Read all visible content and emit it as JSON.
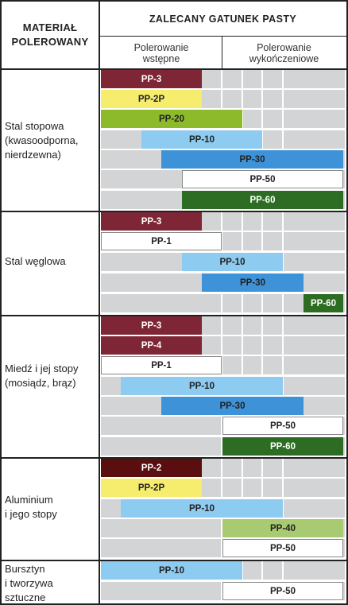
{
  "header": {
    "material_line1": "MATERIAŁ",
    "material_line2": "POLEROWANY",
    "paste_grade": "ZALECANY GATUNEK PASTY",
    "pre_polish_line1": "Polerowanie",
    "pre_polish_line2": "wstępne",
    "finish_polish_line1": "Polerowanie",
    "finish_polish_line2": "wykończeniowe"
  },
  "colors": {
    "grey": "#d3d4d5",
    "maroon": "#7f2636",
    "dark_maroon": "#5b0e10",
    "yellow": "#f6ec6e",
    "lime": "#8dba2b",
    "light_blue": "#8ecbf0",
    "blue": "#3d92d8",
    "white": "#ffffff",
    "dark_green": "#2d6d23",
    "light_green": "#a8ca70"
  },
  "groups": [
    {
      "lines": [
        "Stal stopowa",
        "(kwasoodporna,",
        "nierdzewna)"
      ],
      "rows": [
        {
          "label": "PP-3",
          "color": "maroon"
        },
        {
          "label": "PP-2P",
          "color": "yellow"
        },
        {
          "label": "PP-20",
          "color": "lime"
        },
        {
          "label": "PP-10",
          "color": "light_blue"
        },
        {
          "label": "PP-30",
          "color": "blue"
        },
        {
          "label": "PP-50",
          "color": "white"
        },
        {
          "label": "PP-60",
          "color": "dark_green"
        }
      ]
    },
    {
      "lines": [
        "Stal węglowa"
      ],
      "rows": [
        {
          "label": "PP-3",
          "color": "maroon"
        },
        {
          "label": "PP-1",
          "color": "white"
        },
        {
          "label": "PP-10",
          "color": "light_blue"
        },
        {
          "label": "PP-30",
          "color": "blue"
        },
        {
          "label": "PP-60",
          "color": "dark_green"
        }
      ]
    },
    {
      "lines": [
        "Miedź i jej stopy",
        "(mosiądz, brąz)"
      ],
      "rows": [
        {
          "label": "PP-3",
          "color": "maroon"
        },
        {
          "label": "PP-4",
          "color": "maroon"
        },
        {
          "label": "PP-1",
          "color": "white"
        },
        {
          "label": "PP-10",
          "color": "light_blue"
        },
        {
          "label": "PP-30",
          "color": "blue"
        },
        {
          "label": "PP-50",
          "color": "white"
        },
        {
          "label": "PP-60",
          "color": "dark_green"
        }
      ]
    },
    {
      "lines": [
        "Aluminium",
        "i jego stopy"
      ],
      "rows": [
        {
          "label": "PP-2",
          "color": "dark_maroon"
        },
        {
          "label": "PP-2P",
          "color": "yellow"
        },
        {
          "label": "PP-10",
          "color": "light_blue"
        },
        {
          "label": "PP-40",
          "color": "light_green"
        },
        {
          "label": "PP-50",
          "color": "white"
        }
      ]
    },
    {
      "lines": [
        "Bursztyn",
        "i tworzywa",
        "sztuczne"
      ],
      "rows": [
        {
          "label": "PP-10",
          "color": "light_blue"
        },
        {
          "label": "PP-50",
          "color": "white"
        }
      ]
    }
  ]
}
